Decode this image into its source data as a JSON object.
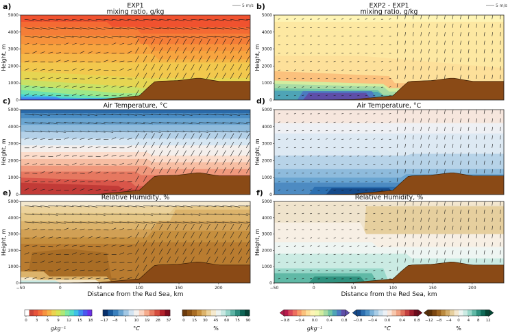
{
  "chart_data": [
    {
      "id": "a",
      "type": "heatmap",
      "panel_label": "a)",
      "title": "EXP1",
      "subtitle": "mixing ratio, g/kg",
      "ylabel": "Height, m",
      "xlabel": "",
      "ylim": [
        0,
        5000
      ],
      "xlim": [
        -50,
        240
      ],
      "yticks": [
        0,
        1000,
        2000,
        3000,
        4000,
        5000
      ],
      "xticks": [],
      "field": "mix",
      "quiver_key": "5",
      "profile": {
        "x": [
          -50,
          0,
          50,
          100,
          110,
          120,
          150,
          175,
          200,
          240
        ],
        "y": [
          0,
          0,
          30,
          250,
          700,
          1100,
          1150,
          1300,
          1100,
          1100
        ]
      }
    },
    {
      "id": "b",
      "type": "heatmap",
      "panel_label": "b)",
      "title": "EXP2 - EXP1",
      "subtitle": "mixing ratio, g/kg",
      "ylabel": "Height, m",
      "xlabel": "",
      "ylim": [
        0,
        5000
      ],
      "xlim": [
        -50,
        240
      ],
      "yticks": [
        0,
        1000,
        2000,
        3000,
        4000,
        5000
      ],
      "xticks": [],
      "field": "dmix",
      "quiver_key": "5",
      "profile": {
        "x": [
          -50,
          0,
          50,
          100,
          110,
          120,
          150,
          175,
          200,
          240
        ],
        "y": [
          0,
          0,
          30,
          250,
          700,
          1100,
          1150,
          1300,
          1100,
          1100
        ]
      }
    },
    {
      "id": "c",
      "type": "heatmap",
      "panel_label": "c)",
      "title": "Air Temperature, °C",
      "subtitle": "",
      "ylabel": "Height, m",
      "xlabel": "",
      "ylim": [
        0,
        5000
      ],
      "xlim": [
        -50,
        240
      ],
      "yticks": [
        0,
        1000,
        2000,
        3000,
        4000,
        5000
      ],
      "xticks": [],
      "field": "temp",
      "quiver_key": "",
      "profile": {
        "x": [
          -50,
          0,
          50,
          100,
          110,
          120,
          150,
          175,
          200,
          240
        ],
        "y": [
          0,
          0,
          30,
          250,
          700,
          1100,
          1150,
          1300,
          1100,
          1100
        ]
      }
    },
    {
      "id": "d",
      "type": "heatmap",
      "panel_label": "d)",
      "title": "Air Temperature, °C",
      "subtitle": "",
      "ylabel": "Height, m",
      "xlabel": "",
      "ylim": [
        0,
        5000
      ],
      "xlim": [
        -50,
        240
      ],
      "yticks": [
        0,
        1000,
        2000,
        3000,
        4000,
        5000
      ],
      "xticks": [],
      "field": "dtemp",
      "quiver_key": "",
      "profile": {
        "x": [
          -50,
          0,
          50,
          100,
          110,
          120,
          150,
          175,
          200,
          240
        ],
        "y": [
          0,
          0,
          30,
          250,
          700,
          1100,
          1150,
          1300,
          1100,
          1100
        ]
      }
    },
    {
      "id": "e",
      "type": "heatmap",
      "panel_label": "e)",
      "title": "Relative Humidity, %",
      "subtitle": "",
      "ylabel": "Height, m",
      "xlabel": "Distance from the Red Sea, km",
      "ylim": [
        0,
        5000
      ],
      "xlim": [
        -50,
        240
      ],
      "yticks": [
        0,
        1000,
        2000,
        3000,
        4000,
        5000
      ],
      "xticks": [
        -50,
        0,
        50,
        100,
        150,
        200
      ],
      "field": "rh",
      "quiver_key": "",
      "profile": {
        "x": [
          -50,
          0,
          50,
          100,
          110,
          120,
          150,
          175,
          200,
          240
        ],
        "y": [
          0,
          0,
          30,
          250,
          700,
          1100,
          1150,
          1300,
          1100,
          1100
        ]
      }
    },
    {
      "id": "f",
      "type": "heatmap",
      "panel_label": "f)",
      "title": "Relative Humidity, %",
      "subtitle": "",
      "ylabel": "Height, m",
      "xlabel": "Distance from the Red Sea, km",
      "ylim": [
        0,
        5000
      ],
      "xlim": [
        -50,
        240
      ],
      "yticks": [
        0,
        1000,
        2000,
        3000,
        4000,
        5000
      ],
      "xticks": [
        -50,
        0,
        50,
        100,
        150,
        200
      ],
      "field": "drh",
      "quiver_key": "",
      "profile": {
        "x": [
          -50,
          0,
          50,
          100,
          110,
          120,
          150,
          175,
          200,
          240
        ],
        "y": [
          0,
          0,
          30,
          250,
          700,
          1100,
          1150,
          1300,
          1100,
          1100
        ]
      }
    }
  ],
  "quiver_key_label": "5",
  "quiver_key_unit": "m/s",
  "colorbars": [
    {
      "id": "cb1",
      "ticks": [
        "0",
        "3",
        "6",
        "9",
        "12",
        "15",
        "18"
      ],
      "unit": "gkg⁻¹",
      "italic": true,
      "colors": [
        "#ffffff",
        "#c9463a",
        "#e8533a",
        "#f2703c",
        "#f7933f",
        "#f5b247",
        "#ecd250",
        "#d7e455",
        "#aee978",
        "#7fe8a3",
        "#54dec6",
        "#3ec1e6",
        "#3f8cf0",
        "#4a57ef",
        "#6b2fe8"
      ],
      "extend": false
    },
    {
      "id": "cb2",
      "ticks": [
        "−17",
        "−8",
        "1",
        "10",
        "19",
        "28",
        "37"
      ],
      "unit": "°C",
      "italic": true,
      "colors": [
        "#08306b",
        "#1a5a9d",
        "#3a80bd",
        "#6aa5d1",
        "#a2c7e3",
        "#d2e3f1",
        "#f5f1ee",
        "#fbd5c2",
        "#f5ab8c",
        "#e87c62",
        "#d44d3e",
        "#b3212b",
        "#7d0b1d"
      ],
      "extend": false
    },
    {
      "id": "cb3",
      "ticks": [
        "0",
        "15",
        "30",
        "45",
        "60",
        "75",
        "90"
      ],
      "unit": "%",
      "italic": false,
      "colors": [
        "#6b3a0d",
        "#8a5115",
        "#a96d25",
        "#c68f3e",
        "#dcb36b",
        "#ebd29c",
        "#f5e9cd",
        "#edf3f0",
        "#c8e8e2",
        "#95d3c8",
        "#5cb3a4",
        "#2c8b7c",
        "#0e6455",
        "#064236"
      ],
      "extend": false
    },
    {
      "id": "cb4",
      "ticks": [
        "−0.8",
        "−0.4",
        "0.0",
        "0.4",
        "0.8"
      ],
      "unit": "gkg⁻¹",
      "italic": true,
      "colors": [
        "#b81b4d",
        "#d9475a",
        "#ee6f5f",
        "#f79a69",
        "#fbc17d",
        "#fde09a",
        "#fef4b5",
        "#f2f9b0",
        "#d3ed9f",
        "#a7dba4",
        "#72c5a5",
        "#4ea4b6",
        "#4c7ac1",
        "#5e4ea8"
      ],
      "extend": true
    },
    {
      "id": "cb5",
      "ticks": [
        "−0.8",
        "−0.4",
        "0.0",
        "0.4",
        "0.8"
      ],
      "unit": "°C",
      "italic": true,
      "colors": [
        "#154a8a",
        "#2c6fb0",
        "#4d91c6",
        "#7cb2d8",
        "#a9cde6",
        "#d0e3f0",
        "#ecf1f6",
        "#fae8dd",
        "#f8c8ad",
        "#f1a182",
        "#e0715c",
        "#c4403f",
        "#9c1d2c",
        "#6d0a1c"
      ],
      "extend": true
    },
    {
      "id": "cb6",
      "ticks": [
        "−12",
        "−8",
        "−4",
        "0",
        "4",
        "8",
        "12"
      ],
      "unit": "%",
      "italic": false,
      "colors": [
        "#5a3108",
        "#7b4711",
        "#9c6420",
        "#bb8a3f",
        "#d3ad6a",
        "#e6cf9e",
        "#f4e7cf",
        "#eef5f2",
        "#cbebe3",
        "#9ad8ca",
        "#60b9a6",
        "#2f917e",
        "#0f6a57",
        "#054634"
      ],
      "extend": true
    }
  ]
}
